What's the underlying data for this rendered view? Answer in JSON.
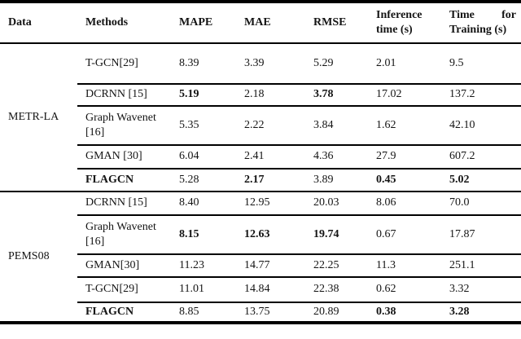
{
  "table": {
    "colors": {
      "text": "#141414",
      "border": "#000000",
      "background": "#ffffff"
    },
    "columns": {
      "data": "Data",
      "methods": "Methods",
      "mape": "MAPE",
      "mae": "MAE",
      "rmse": "RMSE",
      "inference": "Inference time (s)",
      "training": "Time for Training (s)"
    },
    "groups": [
      {
        "dataset": "METR-LA",
        "rows": [
          {
            "method": {
              "v": "T-GCN[29]"
            },
            "mape": {
              "v": "8.39"
            },
            "mae": {
              "v": "3.39"
            },
            "rmse": {
              "v": "5.29"
            },
            "inference": {
              "v": "2.01"
            },
            "training": {
              "v": "9.5"
            }
          },
          {
            "method": {
              "v": "DCRNN  [15]"
            },
            "mape": {
              "v": "5.19",
              "b": true
            },
            "mae": {
              "v": "2.18"
            },
            "rmse": {
              "v": "3.78",
              "b": true
            },
            "inference": {
              "v": "17.02"
            },
            "training": {
              "v": "137.2"
            }
          },
          {
            "method": {
              "v": "Graph Wavenet [16]"
            },
            "mape": {
              "v": "5.35"
            },
            "mae": {
              "v": "2.22"
            },
            "rmse": {
              "v": "3.84"
            },
            "inference": {
              "v": "1.62"
            },
            "training": {
              "v": "42.10"
            }
          },
          {
            "method": {
              "v": "GMAN [30]"
            },
            "mape": {
              "v": "6.04"
            },
            "mae": {
              "v": "2.41"
            },
            "rmse": {
              "v": "4.36"
            },
            "inference": {
              "v": "27.9"
            },
            "training": {
              "v": "607.2"
            }
          },
          {
            "method": {
              "v": "FLAGCN",
              "b": true
            },
            "mape": {
              "v": "5.28"
            },
            "mae": {
              "v": "2.17",
              "b": true
            },
            "rmse": {
              "v": "3.89"
            },
            "inference": {
              "v": "0.45",
              "b": true
            },
            "training": {
              "v": "5.02",
              "b": true
            }
          }
        ]
      },
      {
        "dataset": "PEMS08",
        "rows": [
          {
            "method": {
              "v": "DCRNN [15]"
            },
            "mape": {
              "v": "8.40"
            },
            "mae": {
              "v": "12.95"
            },
            "rmse": {
              "v": "20.03"
            },
            "inference": {
              "v": "8.06"
            },
            "training": {
              "v": "70.0"
            }
          },
          {
            "method": {
              "v": "Graph Wavenet [16]"
            },
            "mape": {
              "v": "8.15",
              "b": true
            },
            "mae": {
              "v": "12.63",
              "b": true
            },
            "rmse": {
              "v": "19.74",
              "b": true
            },
            "inference": {
              "v": "0.67"
            },
            "training": {
              "v": "17.87"
            }
          },
          {
            "method": {
              "v": "GMAN[30]"
            },
            "mape": {
              "v": "11.23"
            },
            "mae": {
              "v": "14.77"
            },
            "rmse": {
              "v": "22.25"
            },
            "inference": {
              "v": "11.3"
            },
            "training": {
              "v": "251.1"
            }
          },
          {
            "method": {
              "v": "T-GCN[29]"
            },
            "mape": {
              "v": "11.01"
            },
            "mae": {
              "v": "14.84"
            },
            "rmse": {
              "v": "22.38"
            },
            "inference": {
              "v": "0.62"
            },
            "training": {
              "v": "3.32"
            }
          },
          {
            "method": {
              "v": "FLAGCN",
              "b": true
            },
            "mape": {
              "v": "8.85"
            },
            "mae": {
              "v": "13.75"
            },
            "rmse": {
              "v": "20.89"
            },
            "inference": {
              "v": "0.38",
              "b": true
            },
            "training": {
              "v": "3.28",
              "b": true
            }
          }
        ]
      }
    ]
  }
}
